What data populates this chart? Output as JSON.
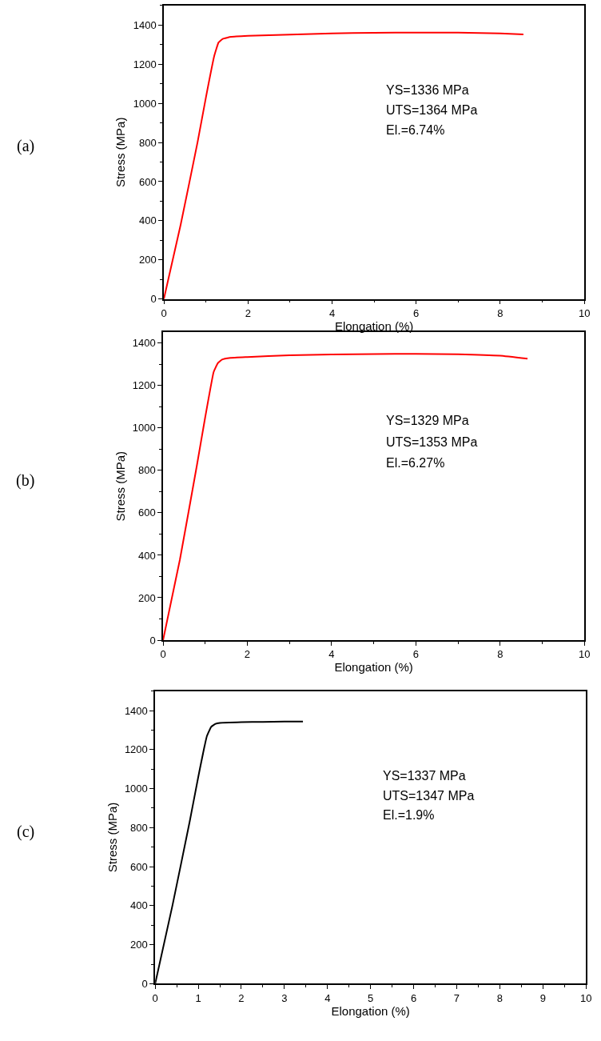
{
  "chart_data": [
    {
      "type": "line",
      "xlabel": "Elongation (%)",
      "ylabel": "Stress (MPa)",
      "annotations": [
        "(a)",
        "YS=1336 MPa",
        "UTS=1364 MPa",
        "El.=6.74%"
      ],
      "xlim": [
        0,
        10
      ],
      "xticks": [
        0,
        2,
        4,
        6,
        8,
        10
      ],
      "ylim": [
        0,
        1500
      ],
      "yticks": [
        0,
        200,
        400,
        600,
        800,
        1000,
        1200,
        1400
      ],
      "marker": "none",
      "line_style": "solid",
      "series": [
        {
          "color": "#ff0000",
          "x": [
            0,
            0.4,
            0.8,
            1.0,
            1.2,
            1.3,
            1.4,
            1.6,
            2,
            3,
            4,
            5,
            6,
            7,
            8,
            8.55
          ],
          "values": [
            0,
            380,
            800,
            1030,
            1244,
            1311,
            1330,
            1340,
            1345,
            1352,
            1358,
            1361,
            1362,
            1362,
            1358,
            1353
          ]
        }
      ]
    },
    {
      "type": "line",
      "xlabel": "Elongation (%)",
      "ylabel": "Stress (MPa)",
      "annotations": [
        "(b)",
        "YS=1329 MPa",
        "UTS=1353 MPa",
        "El.=6.27%"
      ],
      "xlim": [
        0,
        10
      ],
      "xticks": [
        0,
        2,
        4,
        6,
        8,
        10
      ],
      "ylim": [
        0,
        1450
      ],
      "yticks": [
        0,
        200,
        400,
        600,
        800,
        1000,
        1200,
        1400
      ],
      "marker": "none",
      "line_style": "solid",
      "series": [
        {
          "color": "#ff0000",
          "x": [
            0,
            0.4,
            0.8,
            1.0,
            1.2,
            1.3,
            1.4,
            1.6,
            2,
            3,
            4,
            5,
            6,
            7,
            8,
            8.65
          ],
          "values": [
            0,
            380,
            820,
            1050,
            1263,
            1305,
            1322,
            1330,
            1334,
            1342,
            1346,
            1348,
            1349,
            1347,
            1340,
            1326
          ]
        }
      ]
    },
    {
      "type": "line",
      "xlabel": "Elongation (%)",
      "ylabel": "Stress (MPa)",
      "annotations": [
        "(c)",
        "YS=1337 MPa",
        "UTS=1347 MPa",
        "El.=1.9%"
      ],
      "xlim": [
        0,
        10
      ],
      "xticks": [
        0,
        1,
        2,
        3,
        4,
        5,
        6,
        7,
        8,
        9,
        10
      ],
      "ylim": [
        0,
        1500
      ],
      "yticks": [
        0,
        200,
        400,
        600,
        800,
        1000,
        1200,
        1400
      ],
      "marker": "none",
      "line_style": "solid",
      "series": [
        {
          "color": "#000000",
          "x": [
            0,
            0.4,
            0.8,
            1.0,
            1.2,
            1.3,
            1.4,
            1.5,
            2,
            2.5,
            3,
            3.43
          ],
          "values": [
            0,
            400,
            830,
            1060,
            1269,
            1317,
            1332,
            1337,
            1341,
            1342,
            1344,
            1344
          ]
        }
      ]
    }
  ]
}
